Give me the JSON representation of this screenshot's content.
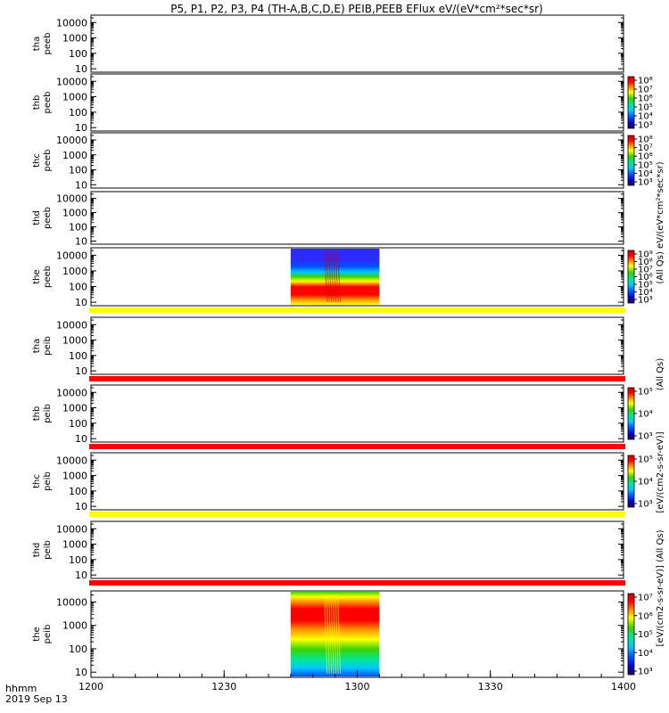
{
  "chart_data": {
    "type": "heatmap",
    "title": "P5, P1, P2, P3, P4 (TH-A,B,C,D,E) PEIB,PEEB EFlux eV/(eV*cm²*sec*sr)",
    "xlabel_line1": "hhmm",
    "xlabel_line2": "2019 Sep 13",
    "x_range": [
      "1200",
      "1400"
    ],
    "x_ticks": [
      "1200",
      "1230",
      "1300",
      "1330",
      "1400"
    ],
    "y_scale": "log",
    "y_range": [
      6,
      30000
    ],
    "y_ticks": [
      "10",
      "100",
      "1000",
      "10000"
    ],
    "side_label_electron": "(All Qs) eV/(eV*cm²*sec*sr)",
    "side_label_ion": "[eV/(cm2-s-sr-eV)] (All Qs)",
    "side_label_electron_fragment": "(All Qs)",
    "side_label_ion_fragment": "[eV/(cm2-s-sr-eV)]",
    "colormap": [
      "#2b0047",
      "#0000c8",
      "#0050ff",
      "#00c8ff",
      "#00e896",
      "#3cd200",
      "#ffff00",
      "#ff8c00",
      "#ff0000",
      "#c80000"
    ],
    "panels": [
      {
        "probe": "tha",
        "instrument": "peeb",
        "label1": "tha",
        "label2": "peeb",
        "data": "none",
        "colorbar": null,
        "band_below": null
      },
      {
        "probe": "thb",
        "instrument": "peeb",
        "label1": "thb",
        "label2": "peeb",
        "data": "none",
        "colorbar": {
          "ticks": [
            "10⁸",
            "10⁷",
            "10⁶",
            "10⁵",
            "10⁴",
            "10³"
          ]
        },
        "band_below": null
      },
      {
        "probe": "thc",
        "instrument": "peeb",
        "label1": "thc",
        "label2": "peeb",
        "data": "none",
        "colorbar": {
          "ticks": [
            "10⁸",
            "10⁷",
            "10⁶",
            "10⁵",
            "10⁴",
            "10³"
          ]
        },
        "band_below": null
      },
      {
        "probe": "thd",
        "instrument": "peeb",
        "label1": "thd",
        "label2": "peeb",
        "data": "none",
        "colorbar": null,
        "band_below": null
      },
      {
        "probe": "the",
        "instrument": "peeb",
        "label1": "the",
        "label2": "peeb",
        "data": "electron",
        "colorbar": {
          "ticks": [
            "10⁹",
            "10⁸",
            "10⁷",
            "10⁶",
            "10⁵",
            "10⁴",
            "10³"
          ]
        },
        "band_below": "#ffff00"
      },
      {
        "probe": "tha",
        "instrument": "peib",
        "label1": "tha",
        "label2": "peib",
        "data": "none",
        "colorbar": null,
        "band_below": "#ff0000"
      },
      {
        "probe": "thb",
        "instrument": "peib",
        "label1": "thb",
        "label2": "peib",
        "data": "none",
        "colorbar": {
          "ticks": [
            "10⁵",
            "10⁴",
            "10³"
          ]
        },
        "band_below": "#ff0000"
      },
      {
        "probe": "thc",
        "instrument": "peib",
        "label1": "thc",
        "label2": "peib",
        "data": "none",
        "colorbar": {
          "ticks": [
            "10⁵",
            "10⁴",
            "10³"
          ]
        },
        "band_below": "#ffff00"
      },
      {
        "probe": "thd",
        "instrument": "peib",
        "label1": "thd",
        "label2": "peib",
        "data": "none",
        "colorbar": null,
        "band_below": "#ff0000"
      },
      {
        "probe": "the",
        "instrument": "peib",
        "label1": "the",
        "label2": "peib",
        "data": "ion",
        "colorbar": {
          "ticks": [
            "10⁷",
            "10⁶",
            "10⁵",
            "10⁴",
            "10³"
          ]
        },
        "band_below": null
      }
    ],
    "data_interval": [
      "1245",
      "1305"
    ]
  }
}
